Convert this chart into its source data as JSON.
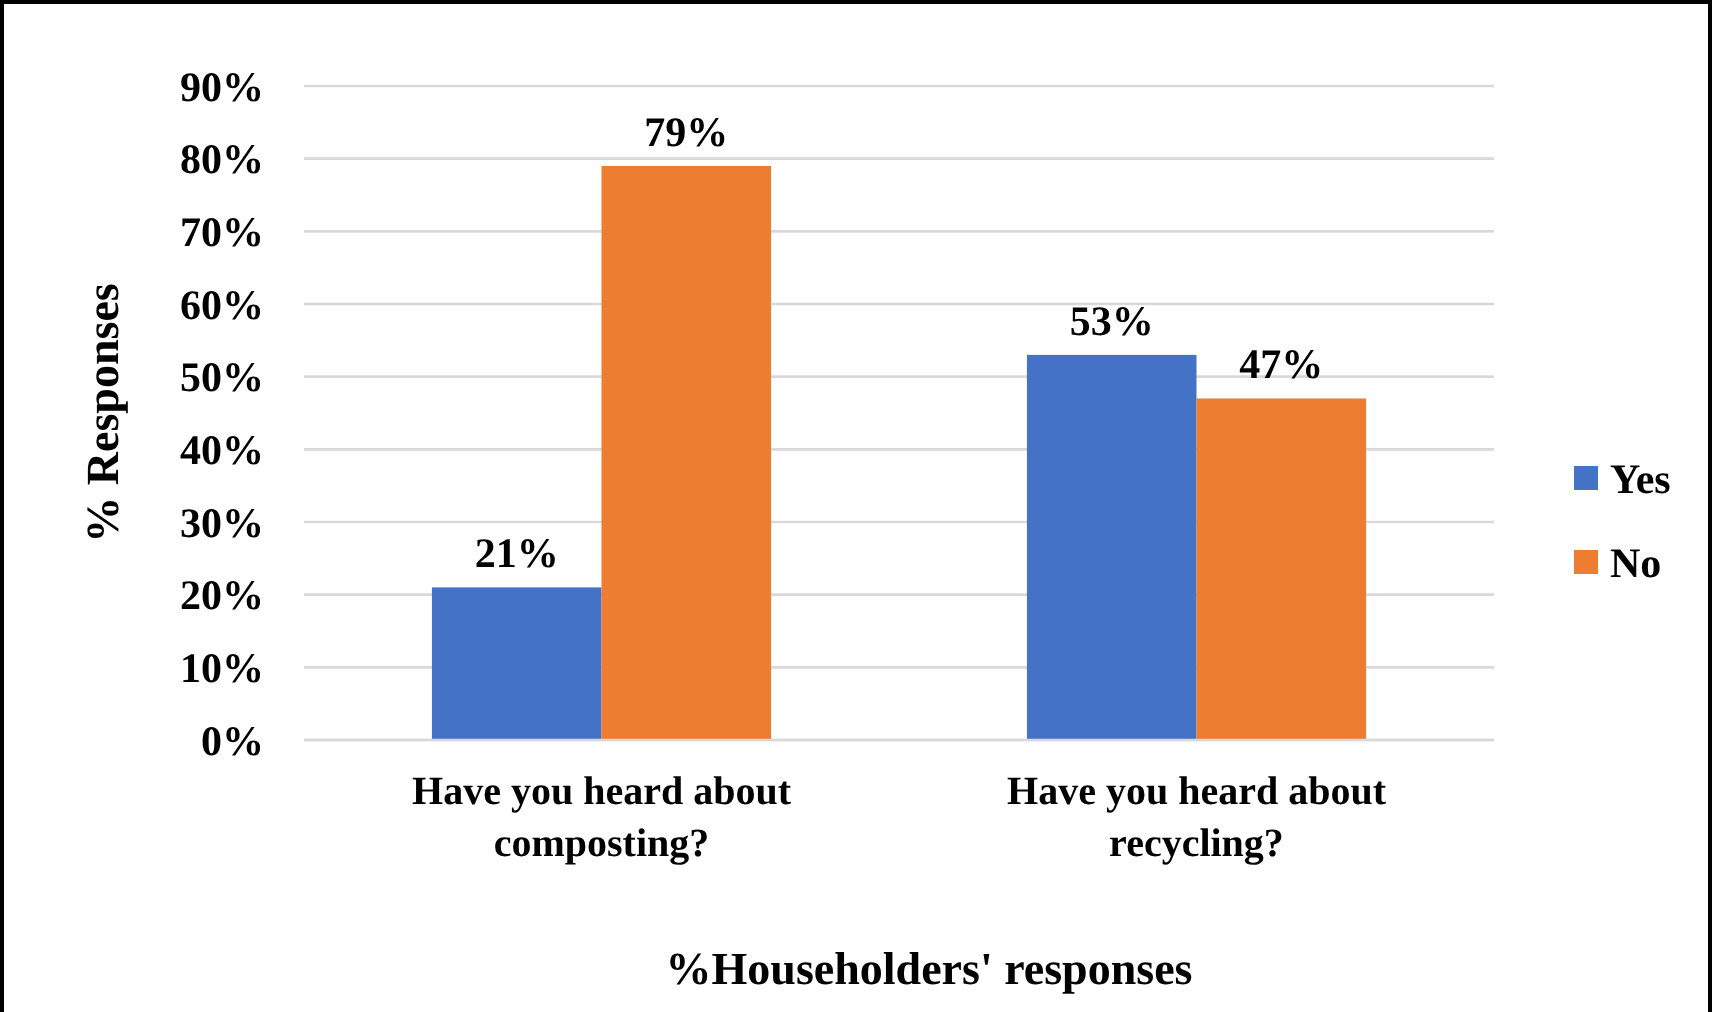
{
  "chart_data": {
    "type": "bar",
    "xlabel": "%Householders' responses",
    "ylabel": "% Responses",
    "categories": [
      "Have you heard about composting?",
      "Have you heard about recycling?"
    ],
    "series": [
      {
        "name": "Yes",
        "color": "#4472c4",
        "values": [
          21,
          53
        ],
        "value_labels": [
          "21%",
          "53%"
        ]
      },
      {
        "name": "No",
        "color": "#ed7d31",
        "values": [
          79,
          47
        ],
        "value_labels": [
          "79%",
          "47%"
        ]
      }
    ],
    "ylim": [
      0,
      90
    ],
    "yticks": [
      {
        "value": 0,
        "label": "0%"
      },
      {
        "value": 10,
        "label": "10%"
      },
      {
        "value": 20,
        "label": "20%"
      },
      {
        "value": 30,
        "label": "30%"
      },
      {
        "value": 40,
        "label": "40%"
      },
      {
        "value": 50,
        "label": "50%"
      },
      {
        "value": 60,
        "label": "60%"
      },
      {
        "value": 70,
        "label": "70%"
      },
      {
        "value": 80,
        "label": "80%"
      },
      {
        "value": 90,
        "label": "90%"
      }
    ],
    "grid": "y",
    "legend": "right"
  }
}
